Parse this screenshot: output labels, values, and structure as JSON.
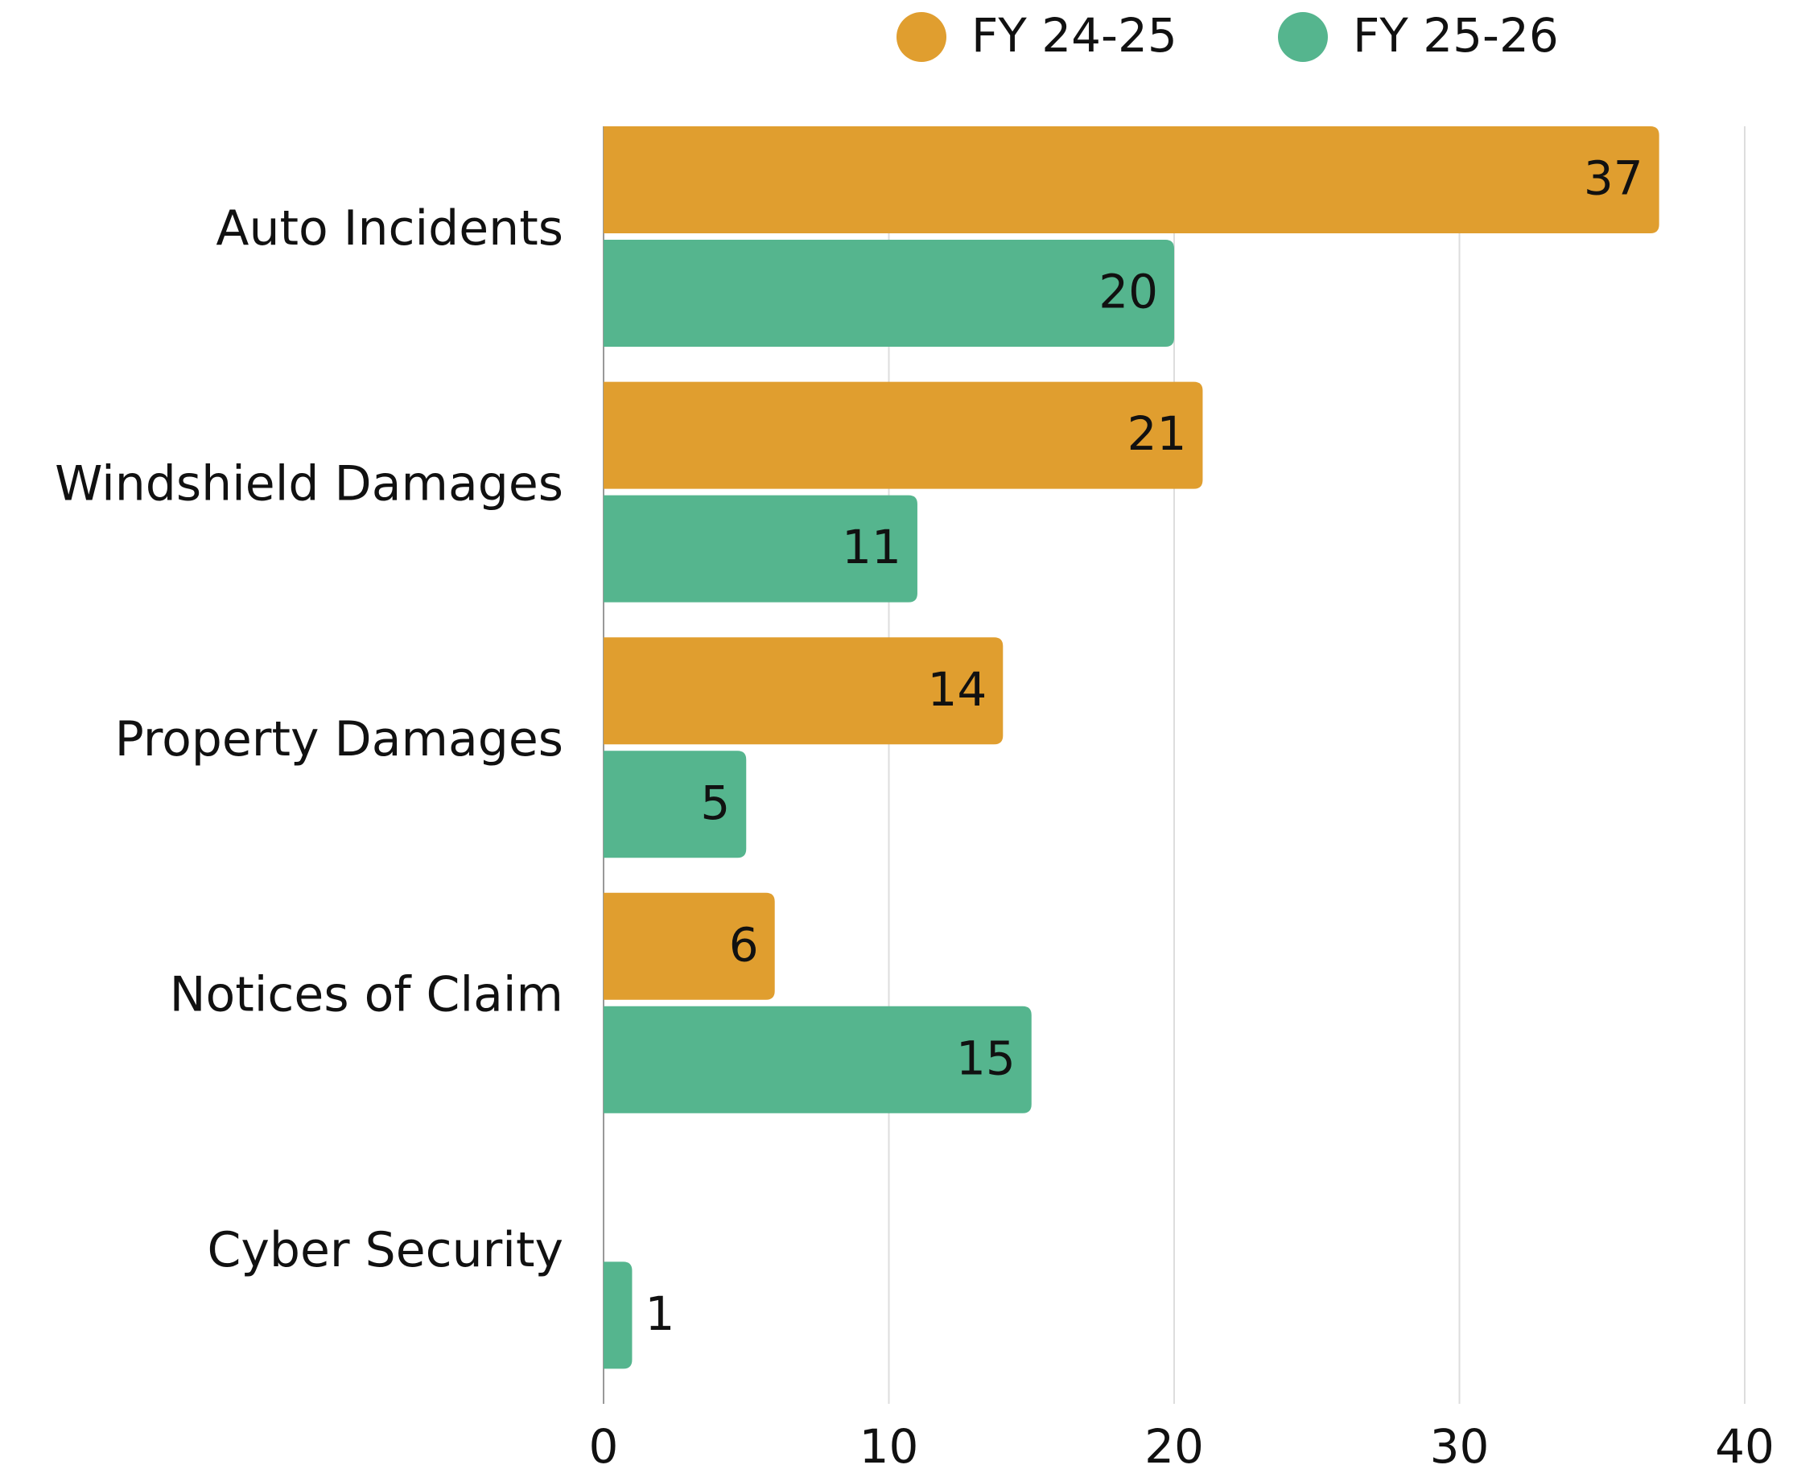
{
  "chart_data": {
    "type": "hbar",
    "categories": [
      "Auto Incidents",
      "Windshield Damages",
      "Property Damages",
      "Notices of Claim",
      "Cyber Security"
    ],
    "series": [
      {
        "name": "FY 24-25",
        "color": "#e09e2f",
        "values": [
          37,
          21,
          14,
          6,
          null
        ]
      },
      {
        "name": "FY 25-26",
        "color": "#55b58e",
        "values": [
          20,
          11,
          5,
          15,
          1
        ]
      }
    ],
    "xlim": [
      0,
      40
    ],
    "xticks": [
      0,
      10,
      20,
      30,
      40
    ],
    "grid": true,
    "legend": "top"
  }
}
